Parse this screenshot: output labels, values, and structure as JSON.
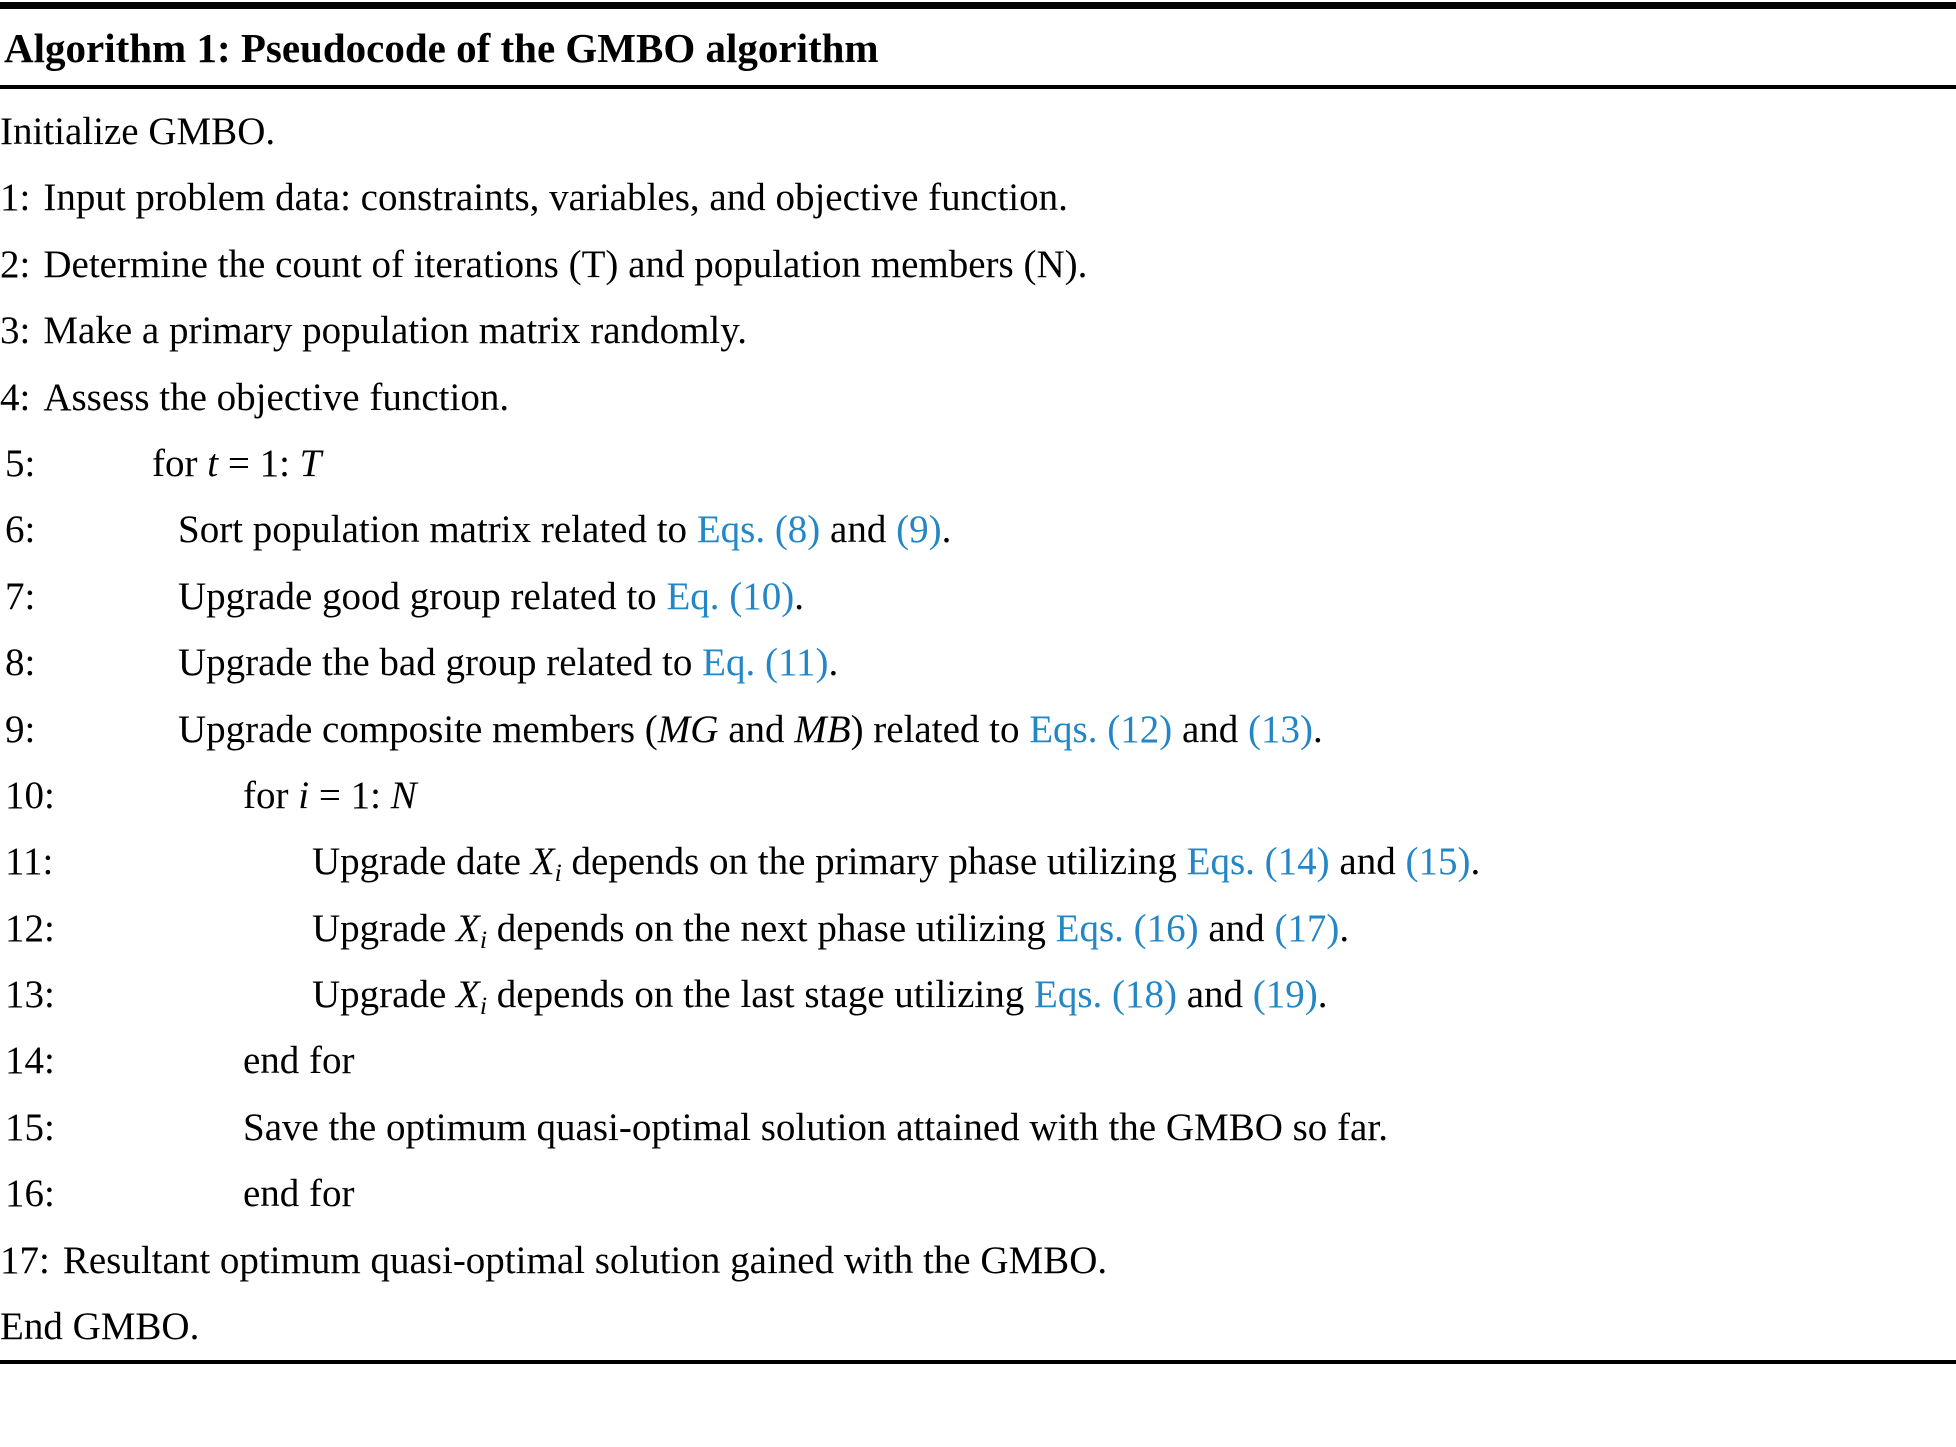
{
  "colors": {
    "background": "#ffffff",
    "text": "#000000",
    "link": "#2386c6",
    "rule": "#000000"
  },
  "title": "Algorithm 1: Pseudocode of the GMBO algorithm",
  "lines": [
    {
      "prefix": "",
      "indent": 0,
      "segments": [
        {
          "text": "Initialize GMBO."
        }
      ]
    },
    {
      "prefix": "1:",
      "indent": 0,
      "segments": [
        {
          "text": "Input problem data: constraints, variables, and objective function."
        }
      ]
    },
    {
      "prefix": "2:",
      "indent": 0,
      "segments": [
        {
          "text": "Determine the count of iterations (T) and population members (N)."
        }
      ]
    },
    {
      "prefix": "3:",
      "indent": 0,
      "segments": [
        {
          "text": "Make a primary population matrix randomly."
        }
      ]
    },
    {
      "prefix": "4:",
      "indent": 0,
      "segments": [
        {
          "text": "Assess the objective function."
        }
      ]
    },
    {
      "prefix": "5:",
      "indent": 1,
      "segments": [
        {
          "text": "for "
        },
        {
          "text": "t",
          "em": true
        },
        {
          "text": " = 1: "
        },
        {
          "text": "T",
          "em": true
        }
      ]
    },
    {
      "prefix": "6:",
      "indent": 2,
      "segments": [
        {
          "text": "Sort population matrix related to "
        },
        {
          "text": "Eqs. (8)",
          "link": true
        },
        {
          "text": " and "
        },
        {
          "text": "(9)",
          "link": true
        },
        {
          "text": "."
        }
      ]
    },
    {
      "prefix": "7:",
      "indent": 2,
      "segments": [
        {
          "text": "Upgrade good group related to "
        },
        {
          "text": "Eq. (10)",
          "link": true
        },
        {
          "text": "."
        }
      ]
    },
    {
      "prefix": "8:",
      "indent": 2,
      "segments": [
        {
          "text": "Upgrade the bad group related to "
        },
        {
          "text": "Eq. (11)",
          "link": true
        },
        {
          "text": "."
        }
      ]
    },
    {
      "prefix": "9:",
      "indent": 2,
      "segments": [
        {
          "text": "Upgrade composite members ("
        },
        {
          "text": "MG",
          "em": true
        },
        {
          "text": " and "
        },
        {
          "text": "MB",
          "em": true
        },
        {
          "text": ") related to "
        },
        {
          "text": "Eqs. (12)",
          "link": true
        },
        {
          "text": " and "
        },
        {
          "text": "(13)",
          "link": true
        },
        {
          "text": "."
        }
      ]
    },
    {
      "prefix": "10:",
      "indent": 3,
      "segments": [
        {
          "text": "for "
        },
        {
          "text": "i",
          "em": true
        },
        {
          "text": " = 1: "
        },
        {
          "text": "N",
          "em": true
        }
      ]
    },
    {
      "prefix": "11:",
      "indent": 4,
      "segments": [
        {
          "text": "Upgrade date "
        },
        {
          "text": "X",
          "em": true,
          "sub": "i"
        },
        {
          "text": " depends on the primary phase utilizing "
        },
        {
          "text": "Eqs. (14)",
          "link": true
        },
        {
          "text": " and "
        },
        {
          "text": "(15)",
          "link": true
        },
        {
          "text": "."
        }
      ]
    },
    {
      "prefix": "12:",
      "indent": 4,
      "segments": [
        {
          "text": "Upgrade "
        },
        {
          "text": "X",
          "em": true,
          "sub": "i"
        },
        {
          "text": " depends on the next phase utilizing "
        },
        {
          "text": "Eqs. (16)",
          "link": true
        },
        {
          "text": " and "
        },
        {
          "text": "(17)",
          "link": true
        },
        {
          "text": "."
        }
      ]
    },
    {
      "prefix": "13:",
      "indent": 4,
      "segments": [
        {
          "text": "Upgrade "
        },
        {
          "text": "X",
          "em": true,
          "sub": "i"
        },
        {
          "text": " depends on the last stage utilizing "
        },
        {
          "text": "Eqs. (18)",
          "link": true
        },
        {
          "text": " and "
        },
        {
          "text": "(19)",
          "link": true
        },
        {
          "text": "."
        }
      ]
    },
    {
      "prefix": "14:",
      "indent": 3,
      "segments": [
        {
          "text": "end for"
        }
      ]
    },
    {
      "prefix": "15:",
      "indent": 3,
      "segments": [
        {
          "text": "Save the optimum quasi-optimal solution attained with the GMBO so far."
        }
      ]
    },
    {
      "prefix": "16:",
      "indent": 3,
      "segments": [
        {
          "text": "end for"
        }
      ]
    },
    {
      "prefix": "17:",
      "indent": 0,
      "segments": [
        {
          "text": "Resultant optimum quasi-optimal solution gained with the GMBO."
        }
      ]
    },
    {
      "prefix": "",
      "indent": 0,
      "segments": [
        {
          "text": "End GMBO."
        }
      ]
    }
  ]
}
